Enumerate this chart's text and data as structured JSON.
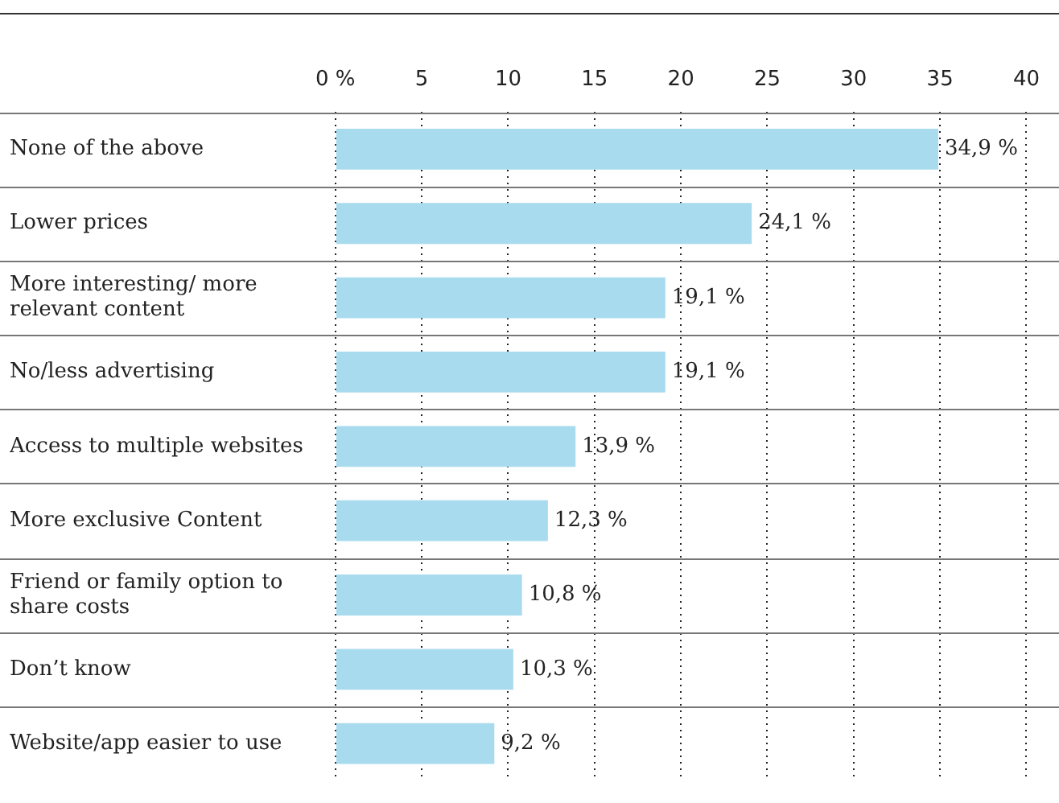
{
  "chart_data": {
    "type": "bar",
    "orientation": "horizontal",
    "categories": [
      "None of the above",
      "Lower prices",
      "More interesting/ more relevant content",
      "No/less advertising",
      "Access to multiple websites",
      "More exclusive Content",
      "Friend or family option to share costs",
      "Don’t know",
      "Website/app easier to use"
    ],
    "values": [
      34.9,
      24.1,
      19.1,
      19.1,
      13.9,
      12.3,
      10.8,
      10.3,
      9.2
    ],
    "value_labels": [
      "34,9 %",
      "24,1 %",
      "19,1 %",
      "19,1 %",
      "13,9 %",
      "12,3 %",
      "10,8 %",
      "10,3 %",
      "9,2 %"
    ],
    "color": "#a9dbee",
    "xlim": [
      0,
      40
    ],
    "xticks": [
      {
        "value": 0,
        "label": "0 %"
      },
      5,
      10,
      15,
      20,
      25,
      30,
      35,
      40
    ],
    "grid": true,
    "legend": false
  }
}
